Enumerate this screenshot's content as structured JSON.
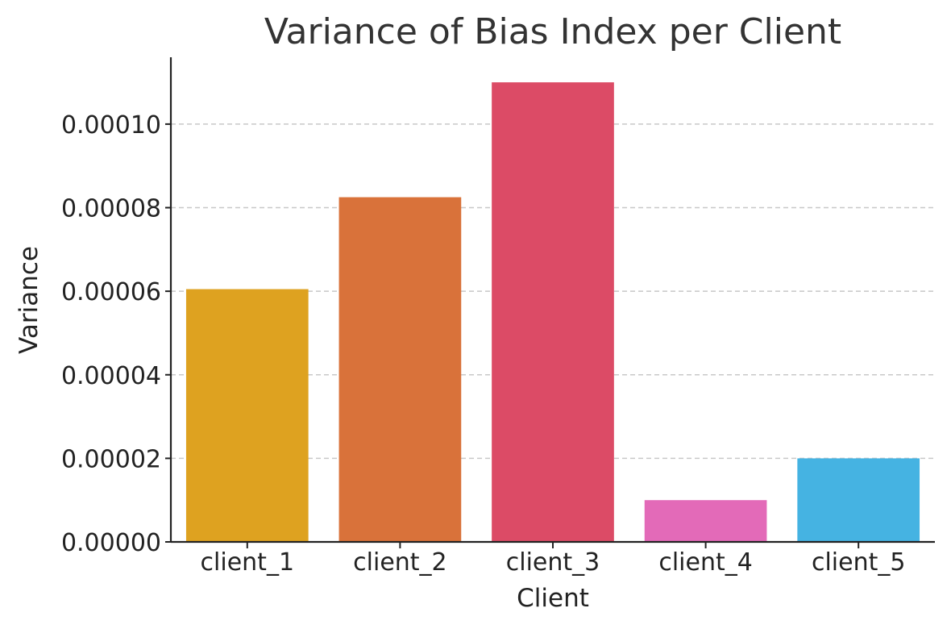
{
  "chart_data": {
    "type": "bar",
    "title": "Variance of Bias Index per Client",
    "xlabel": "Client",
    "ylabel": "Variance",
    "categories": [
      "client_1",
      "client_2",
      "client_3",
      "client_4",
      "client_5"
    ],
    "values": [
      6.05e-05,
      8.25e-05,
      0.00011,
      1e-05,
      2e-05
    ],
    "colors": [
      "#dea220",
      "#d9723a",
      "#dc4b66",
      "#e36ab8",
      "#45b3e2"
    ],
    "ylim": [
      0,
      0.000116
    ],
    "yticks": [
      0,
      2e-05,
      4e-05,
      6e-05,
      8e-05,
      0.0001
    ],
    "ytick_labels": [
      "0.00000",
      "0.00002",
      "0.00004",
      "0.00006",
      "0.00008",
      "0.00010"
    ],
    "grid": "y-dashed",
    "legend": "none"
  }
}
